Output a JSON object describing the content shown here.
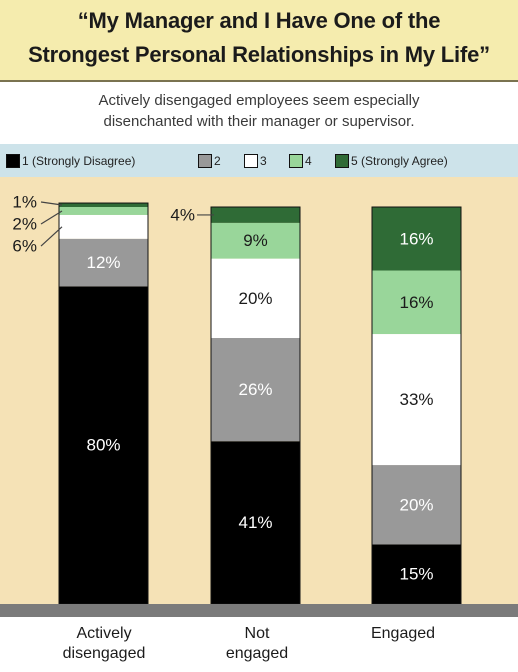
{
  "header": {
    "title_line1": "“My Manager and I Have One of the",
    "title_line2": "Strongest Personal Relationships in My Life”",
    "subtitle_line1": "Actively disengaged employees seem especially",
    "subtitle_line2": "disenchanted with their manager or supervisor."
  },
  "legend": {
    "items": [
      {
        "label": "1 (Strongly Disagree)",
        "color": "#000000"
      },
      {
        "label": "2",
        "color": "#999999"
      },
      {
        "label": "3",
        "color": "#ffffff"
      },
      {
        "label": "4",
        "color": "#99d69a"
      },
      {
        "label": "5 (Strongly Agree)",
        "color": "#2f6b36"
      }
    ]
  },
  "categories": {
    "c0_line1": "Actively",
    "c0_line2": "disengaged",
    "c1_line1": "Not",
    "c1_line2": "engaged",
    "c2_line1": "Engaged"
  },
  "colors": {
    "title_band": "#f5ecae",
    "legend_band": "#cde3ea",
    "plot_background": "#f5e2b6",
    "baseline": "#7b7b7b"
  },
  "chart_data": {
    "type": "bar",
    "stacked": true,
    "categories": [
      "Actively disengaged",
      "Not engaged",
      "Engaged"
    ],
    "series": [
      {
        "name": "1 (Strongly Disagree)",
        "color": "#000000",
        "values": [
          80,
          41,
          15
        ],
        "labels": [
          "80%",
          "41%",
          "15%"
        ]
      },
      {
        "name": "2",
        "color": "#999999",
        "values": [
          12,
          26,
          20
        ],
        "labels": [
          "12%",
          "26%",
          "20%"
        ]
      },
      {
        "name": "3",
        "color": "#ffffff",
        "values": [
          6,
          20,
          33
        ],
        "labels": [
          "6%",
          "20%",
          "33%"
        ]
      },
      {
        "name": "4",
        "color": "#99d69a",
        "values": [
          2,
          9,
          16
        ],
        "labels": [
          "2%",
          "9%",
          "16%"
        ]
      },
      {
        "name": "5 (Strongly Agree)",
        "color": "#2f6b36",
        "values": [
          1,
          4,
          16
        ],
        "labels": [
          "1%",
          "4%",
          "16%"
        ]
      }
    ],
    "ylim": [
      0,
      100
    ],
    "grid": false,
    "legend_position": "top"
  }
}
